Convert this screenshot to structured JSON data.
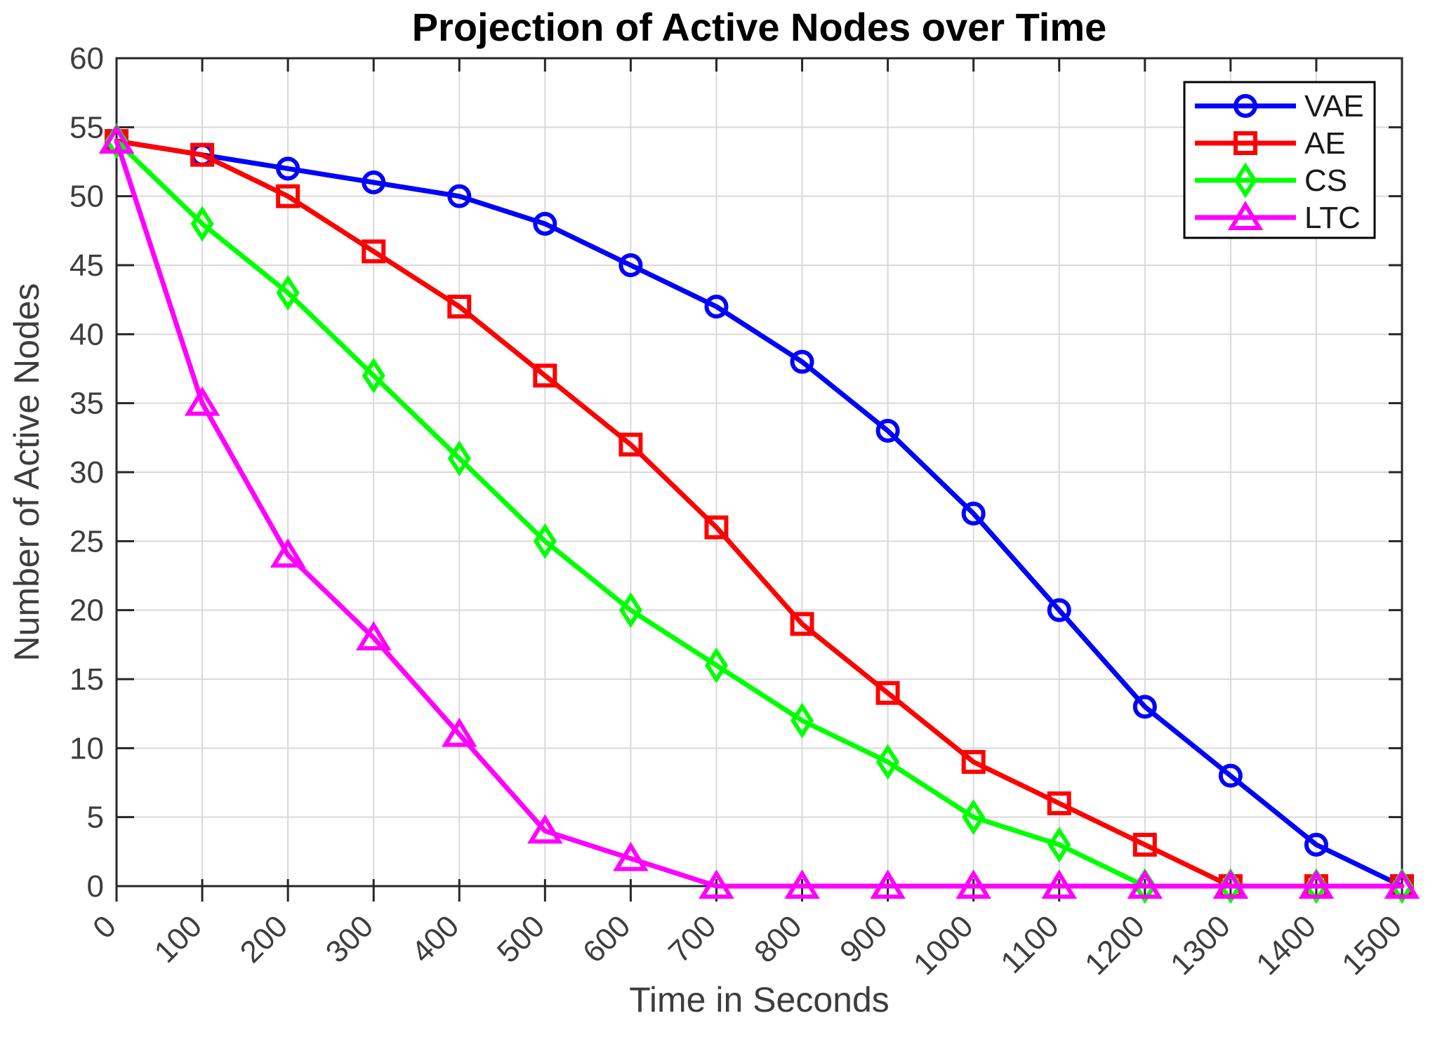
{
  "chart_data": {
    "type": "line",
    "title": "Projection of Active Nodes over Time",
    "xlabel": "Time in Seconds",
    "ylabel": "Number of Active Nodes",
    "x": [
      0,
      100,
      200,
      300,
      400,
      500,
      600,
      700,
      800,
      900,
      1000,
      1100,
      1200,
      1300,
      1400,
      1500
    ],
    "series": [
      {
        "name": "VAE",
        "color": "#0000ff",
        "marker": "circle",
        "values": [
          54,
          53,
          52,
          51,
          50,
          48,
          45,
          42,
          38,
          33,
          27,
          20,
          13,
          8,
          3,
          0
        ]
      },
      {
        "name": "AE",
        "color": "#ff0000",
        "marker": "square",
        "values": [
          54,
          53,
          50,
          46,
          42,
          37,
          32,
          26,
          19,
          14,
          9,
          6,
          3,
          0,
          0,
          0
        ]
      },
      {
        "name": "CS",
        "color": "#00ff00",
        "marker": "diamond",
        "values": [
          54,
          48,
          43,
          37,
          31,
          25,
          20,
          16,
          12,
          9,
          5,
          3,
          0,
          0,
          0,
          0
        ]
      },
      {
        "name": "LTC",
        "color": "#ff00ff",
        "marker": "triangle",
        "values": [
          54,
          35,
          24,
          18,
          11,
          4,
          2,
          0,
          0,
          0,
          0,
          0,
          0,
          0,
          0,
          0
        ]
      }
    ],
    "xlim": [
      0,
      1500
    ],
    "ylim": [
      0,
      60
    ],
    "xticks": [
      0,
      100,
      200,
      300,
      400,
      500,
      600,
      700,
      800,
      900,
      1000,
      1100,
      1200,
      1300,
      1400,
      1500
    ],
    "yticks": [
      0,
      5,
      10,
      15,
      20,
      25,
      30,
      35,
      40,
      45,
      50,
      55,
      60
    ],
    "grid": true,
    "x_tick_rotation_deg": 45,
    "legend": {
      "position": "top-right",
      "entries": [
        "VAE",
        "AE",
        "CS",
        "LTC"
      ]
    },
    "colors": {
      "background": "#ffffff",
      "axis": "#262626",
      "grid": "#d9d9d9",
      "tick_labels": "#3d3d3d",
      "axis_labels": "#3d3d3d",
      "title": "#000000",
      "legend_text": "#1a1a1a",
      "legend_border": "#000000",
      "legend_background": "#ffffff"
    }
  }
}
